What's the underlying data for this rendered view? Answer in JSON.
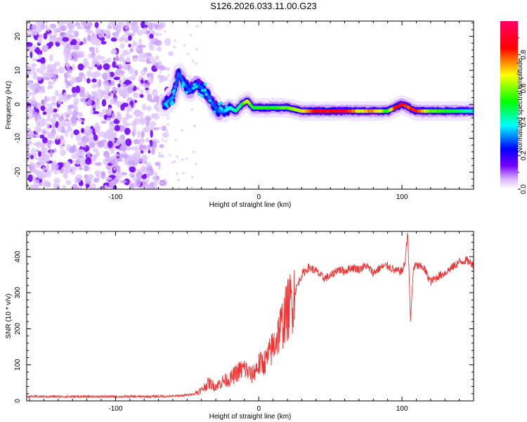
{
  "title": "S126.2026.033.11.00.G23",
  "chart_data": [
    {
      "type": "heatmap",
      "title": "S126.2026.033.11.00.G23",
      "xlabel": "Height of straight line (km)",
      "ylabel": "Frequency (Hz)",
      "xlim": [
        -162,
        150
      ],
      "ylim": [
        -25,
        24.5
      ],
      "xticks": [
        -100,
        0,
        100
      ],
      "xtick_labels": [
        "-100",
        "0",
        "100"
      ],
      "yticks": [
        -20,
        -10,
        0,
        10,
        20
      ],
      "ytick_labels": [
        "-20",
        "-10",
        "0",
        "10",
        "20"
      ],
      "colorbar": {
        "label": "Normalized spectral amplitude",
        "range": [
          0,
          1
        ],
        "ticks": [
          0.0,
          0.2,
          0.4,
          0.6,
          0.8
        ],
        "tick_labels": [
          "0.0",
          "0.2",
          "0.4",
          "0.6",
          "0.8"
        ],
        "colors": [
          "#ffffff",
          "#7700ff",
          "#0000ff",
          "#00ffff",
          "#00ff00",
          "#ffff00",
          "#ff0000",
          "#ff0066"
        ]
      },
      "noise_region_x": [
        -162,
        -60
      ],
      "ridge": {
        "x": [
          -66,
          -60,
          -56,
          -52,
          -48,
          -44,
          -40,
          -36,
          -32,
          -28,
          -24,
          -20,
          -16,
          -12,
          -8,
          -4,
          0,
          10,
          20,
          30,
          40,
          50,
          60,
          70,
          80,
          90,
          95,
          100,
          105,
          110,
          120,
          130,
          140,
          150
        ],
        "frequency": [
          0,
          2,
          9,
          6,
          4,
          6,
          5,
          3,
          0,
          -2,
          -2,
          -1,
          -2,
          0,
          1,
          -1,
          -1,
          -1,
          -1,
          -2,
          -2,
          -2,
          -2,
          -2,
          -2,
          -2,
          -1,
          0,
          -1,
          -2,
          -2,
          -2,
          -2,
          -2
        ],
        "intensity": [
          0.3,
          0.35,
          0.3,
          0.3,
          0.3,
          0.3,
          0.3,
          0.3,
          0.3,
          0.3,
          0.35,
          0.4,
          0.45,
          0.5,
          0.7,
          0.5,
          0.55,
          0.55,
          0.6,
          0.7,
          0.9,
          0.9,
          0.95,
          0.7,
          0.8,
          0.55,
          0.85,
          0.95,
          0.8,
          0.9,
          0.6,
          0.55,
          0.5,
          0.4
        ]
      }
    },
    {
      "type": "line",
      "xlabel": "Height of straight line (km)",
      "ylabel": "SNR (10 * v/v)",
      "xlim": [
        -162,
        150
      ],
      "ylim": [
        0,
        470
      ],
      "xticks": [
        -100,
        0,
        100
      ],
      "xtick_labels": [
        "-100",
        "0",
        "100"
      ],
      "yticks": [
        0,
        100,
        200,
        300,
        400
      ],
      "ytick_labels": [
        "0",
        "100",
        "200",
        "300",
        "400"
      ],
      "series": [
        {
          "name": "SNR",
          "color": "#ee3333",
          "x": [
            -162,
            -140,
            -120,
            -100,
            -80,
            -60,
            -50,
            -45,
            -40,
            -35,
            -30,
            -25,
            -20,
            -15,
            -10,
            -5,
            0,
            5,
            10,
            15,
            20,
            25,
            30,
            35,
            40,
            45,
            50,
            55,
            60,
            65,
            70,
            75,
            80,
            85,
            90,
            95,
            100,
            102,
            104,
            106,
            108,
            110,
            115,
            120,
            125,
            130,
            135,
            140,
            145,
            150
          ],
          "values": [
            12,
            12,
            12,
            12,
            12,
            13,
            16,
            20,
            30,
            50,
            40,
            55,
            60,
            80,
            90,
            70,
            100,
            110,
            150,
            200,
            250,
            300,
            350,
            370,
            360,
            340,
            345,
            365,
            360,
            370,
            365,
            375,
            355,
            370,
            375,
            360,
            360,
            380,
            470,
            220,
            370,
            375,
            370,
            330,
            345,
            355,
            370,
            385,
            390,
            378
          ]
        }
      ]
    }
  ]
}
